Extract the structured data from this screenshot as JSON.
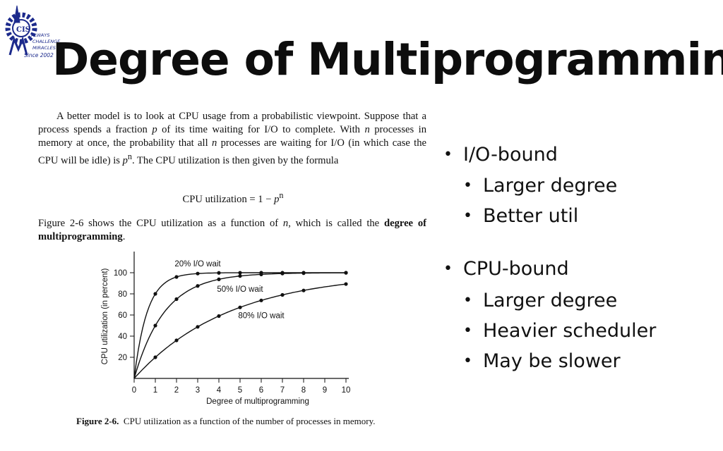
{
  "logo": {
    "lines": [
      "ALWAYS",
      "CHALLENGE",
      "MIRACLES",
      "Since 2002"
    ],
    "monogram": "CIS"
  },
  "slide": {
    "title": "Degree of Multiprogramming"
  },
  "excerpt": {
    "p1": [
      {
        "t": "A better model is to look at CPU usage from a probabilistic viewpoint. Suppose that a process spends a fraction "
      },
      {
        "t": "p",
        "s": "i"
      },
      {
        "t": " of its time waiting for I/O to complete. With "
      },
      {
        "t": "n",
        "s": "i"
      },
      {
        "t": " processes in memory at once, the probability that all "
      },
      {
        "t": "n",
        "s": "i"
      },
      {
        "t": " processes are waiting for I/O (in which case the CPU will be idle) is "
      },
      {
        "t": "p",
        "s": "i"
      },
      {
        "t": "n",
        "s": "sup"
      },
      {
        "t": ".  The CPU utilization is then given by the formula"
      }
    ],
    "formula": [
      {
        "t": "CPU utilization = 1 − "
      },
      {
        "t": "p",
        "s": "i"
      },
      {
        "t": "n",
        "s": "sup"
      }
    ],
    "p2": [
      {
        "t": "Figure 2-6 shows the CPU utilization as a function of "
      },
      {
        "t": "n",
        "s": "i"
      },
      {
        "t": ", which is called the "
      },
      {
        "t": "degree of multiprogramming",
        "s": "b"
      },
      {
        "t": "."
      }
    ]
  },
  "chart_data": {
    "type": "line",
    "x": [
      0,
      1,
      2,
      3,
      4,
      5,
      6,
      7,
      8,
      9,
      10
    ],
    "xticks": [
      "0",
      "1",
      "2",
      "3",
      "4",
      "5",
      "6",
      "7",
      "8",
      "9",
      "10"
    ],
    "yticks": [
      "20",
      "40",
      "60",
      "80",
      "100"
    ],
    "xlabel": "Degree of multiprogramming",
    "ylabel": "CPU utilization (in percent)",
    "xlim": [
      0,
      10
    ],
    "ylim": [
      0,
      120
    ],
    "grid": false,
    "series": [
      {
        "name": "20% I/O wait",
        "marker_x": [
          1,
          2,
          3,
          4,
          5,
          6,
          7,
          8,
          10
        ],
        "values": [
          0,
          80,
          96,
          99.2,
          99.84,
          99.97,
          99.99,
          100,
          100,
          100,
          100
        ]
      },
      {
        "name": "50% I/O wait",
        "marker_x": [
          1,
          2,
          3,
          4,
          5,
          6,
          7,
          8,
          10
        ],
        "values": [
          0,
          50,
          75,
          87.5,
          93.75,
          96.9,
          98.4,
          99.2,
          99.6,
          99.8,
          99.9
        ]
      },
      {
        "name": "80% I/O wait",
        "marker_x": [
          1,
          2,
          3,
          4,
          5,
          6,
          7,
          8,
          10
        ],
        "values": [
          0,
          20,
          36,
          48.8,
          59,
          67.2,
          73.8,
          79,
          83.2,
          86.6,
          89.3
        ]
      }
    ]
  },
  "figure": {
    "label": "Figure 2-6.",
    "caption": "CPU utilization as a function of the number of processes in memory."
  },
  "bullets": [
    {
      "text": "I/O-bound",
      "children": [
        "Larger degree",
        "Better util"
      ]
    },
    {
      "text": "CPU-bound",
      "children": [
        "Larger degree",
        "Heavier scheduler",
        "May be slower"
      ]
    }
  ],
  "bullet_glyph": "•"
}
